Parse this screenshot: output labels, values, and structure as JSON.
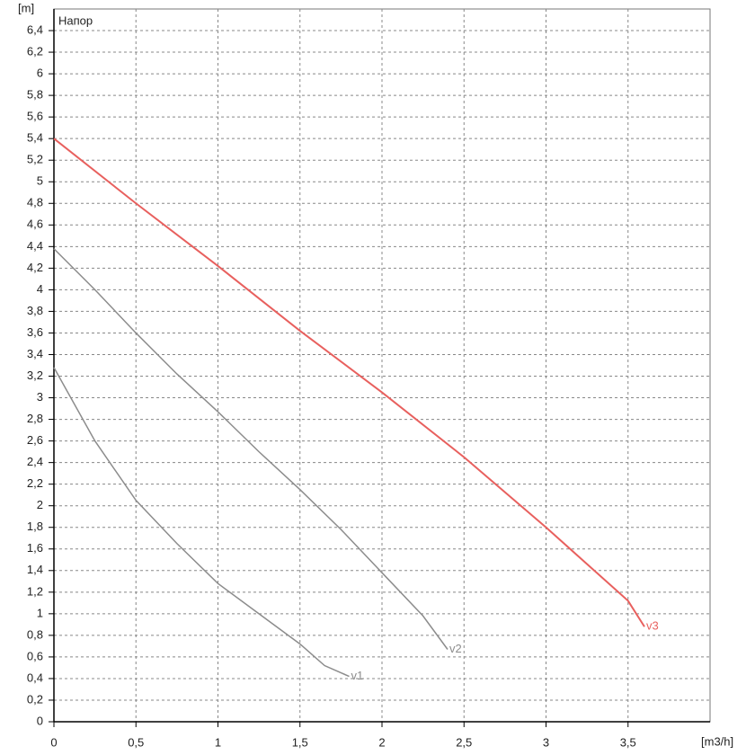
{
  "chart_data": {
    "type": "line",
    "title": "Напор",
    "x_label": "[m3/h]",
    "y_label": "[m]",
    "xlim": [
      0,
      4
    ],
    "ylim": [
      0,
      6.6
    ],
    "xticks": [
      0,
      {
        "value": 0.5,
        "label": "0,5"
      },
      1,
      {
        "value": 1.5,
        "label": "1,5"
      },
      2,
      {
        "value": 2.5,
        "label": "2,5"
      },
      3,
      {
        "value": 3.5,
        "label": "3,5"
      }
    ],
    "yticks": [
      0,
      {
        "value": 0.2,
        "label": "0,2"
      },
      {
        "value": 0.4,
        "label": "0,4"
      },
      {
        "value": 0.6,
        "label": "0,6"
      },
      {
        "value": 0.8,
        "label": "0,8"
      },
      1,
      {
        "value": 1.2,
        "label": "1,2"
      },
      {
        "value": 1.4,
        "label": "1,4"
      },
      {
        "value": 1.6,
        "label": "1,6"
      },
      {
        "value": 1.8,
        "label": "1,8"
      },
      2,
      {
        "value": 2.2,
        "label": "2,2"
      },
      {
        "value": 2.4,
        "label": "2,4"
      },
      {
        "value": 2.6,
        "label": "2,6"
      },
      {
        "value": 2.8,
        "label": "2,8"
      },
      3,
      {
        "value": 3.2,
        "label": "3,2"
      },
      {
        "value": 3.4,
        "label": "3,4"
      },
      {
        "value": 3.6,
        "label": "3,6"
      },
      {
        "value": 3.8,
        "label": "3,8"
      },
      4,
      {
        "value": 4.2,
        "label": "4,2"
      },
      {
        "value": 4.4,
        "label": "4,4"
      },
      {
        "value": 4.6,
        "label": "4,6"
      },
      {
        "value": 4.8,
        "label": "4,8"
      },
      5,
      {
        "value": 5.2,
        "label": "5,2"
      },
      {
        "value": 5.4,
        "label": "5,4"
      },
      {
        "value": 5.6,
        "label": "5,6"
      },
      {
        "value": 5.8,
        "label": "5,8"
      },
      6,
      {
        "value": 6.2,
        "label": "6,2"
      },
      {
        "value": 6.4,
        "label": "6,4"
      }
    ],
    "grid": true,
    "series": [
      {
        "name": "v1",
        "color": "#8c8c8c",
        "x": [
          0,
          0.25,
          0.5,
          0.75,
          1,
          1.25,
          1.5,
          1.65,
          1.8
        ],
        "values": [
          3.28,
          2.6,
          2.05,
          1.65,
          1.28,
          1.0,
          0.72,
          0.52,
          0.42
        ]
      },
      {
        "name": "v2",
        "color": "#8c8c8c",
        "x": [
          0,
          0.25,
          0.5,
          0.75,
          1,
          1.25,
          1.5,
          1.75,
          2,
          2.25,
          2.4
        ],
        "values": [
          4.38,
          4.0,
          3.6,
          3.22,
          2.87,
          2.5,
          2.15,
          1.78,
          1.38,
          0.98,
          0.67
        ]
      },
      {
        "name": "v3",
        "color": "#e8605e",
        "x": [
          0,
          0.5,
          1,
          1.5,
          2,
          2.5,
          3,
          3.5,
          3.6
        ],
        "values": [
          5.4,
          4.8,
          4.22,
          3.62,
          3.05,
          2.45,
          1.8,
          1.12,
          0.88
        ]
      }
    ]
  }
}
